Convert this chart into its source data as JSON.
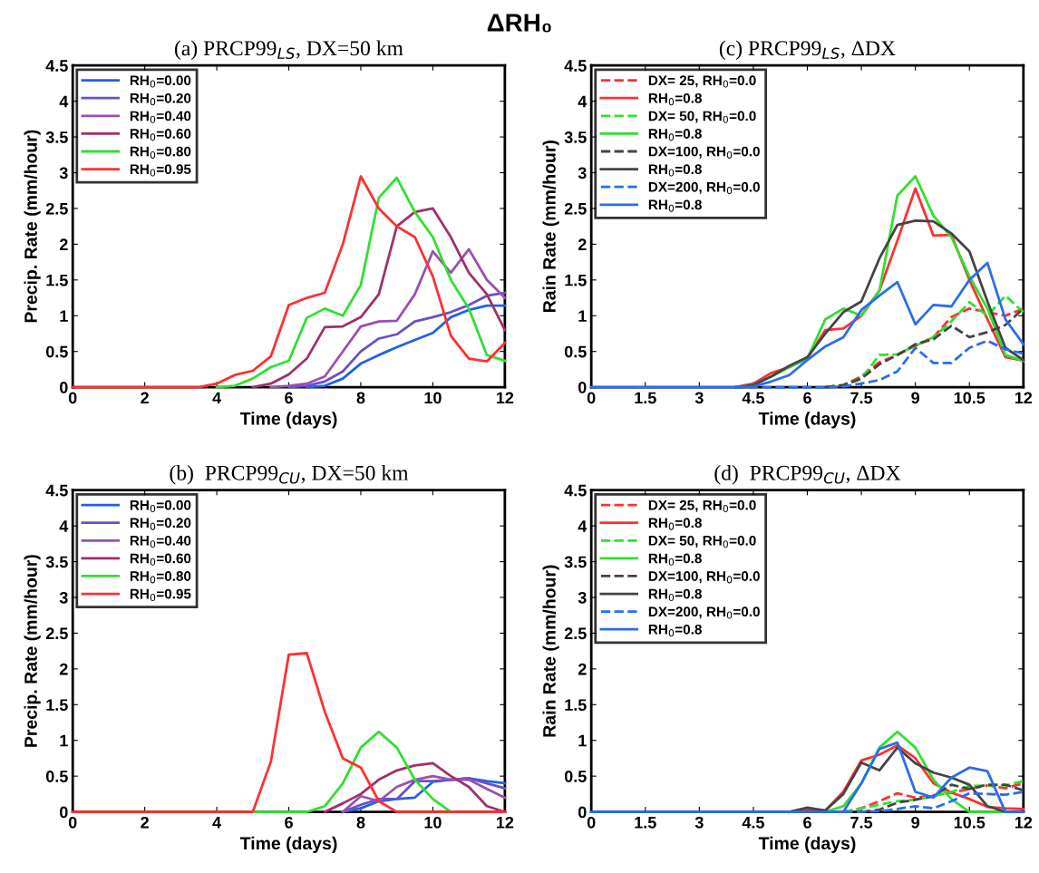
{
  "chart_data": [
    {
      "type": "line",
      "title": "(a) PRCP99$_{LS}$, DX=50 km",
      "xlabel": "Time (days)",
      "ylabel": "Precip. Rate (mm/hour)",
      "annotations": [
        "ΔRH₀"
      ],
      "legend": "top left",
      "grid": false,
      "xlim": [
        0,
        12
      ],
      "xticks": [
        0,
        2,
        4,
        6,
        8,
        10,
        12
      ],
      "ylim": [
        0,
        4.5
      ],
      "yticks": [
        0,
        0.5,
        1,
        1.5,
        2,
        2.5,
        3,
        3.5,
        4,
        4.5
      ],
      "x": [
        0,
        0.5,
        1,
        1.5,
        2,
        2.5,
        3,
        3.5,
        4,
        4.5,
        5,
        5.5,
        6,
        6.5,
        7,
        7.5,
        8,
        8.5,
        9,
        9.5,
        10,
        10.5,
        11,
        11.5,
        12
      ],
      "series": [
        {
          "name": "RH$_{0}$=0.00",
          "color": "#2060e8",
          "line_style": "solid",
          "values": [
            null,
            null,
            null,
            null,
            null,
            null,
            null,
            null,
            null,
            null,
            null,
            null,
            null,
            0,
            0.02,
            0.12,
            0.33,
            0.45,
            0.56,
            0.66,
            0.76,
            0.98,
            1.08,
            1.14,
            1.14
          ]
        },
        {
          "name": "RH$_{0}$=0.20",
          "color": "#6a50c8",
          "line_style": "solid",
          "values": [
            null,
            null,
            null,
            null,
            null,
            null,
            null,
            null,
            null,
            null,
            null,
            null,
            0,
            0.02,
            0.08,
            0.22,
            0.5,
            0.68,
            0.74,
            0.92,
            0.98,
            1.05,
            1.15,
            1.28,
            1.32
          ]
        },
        {
          "name": "RH$_{0}$=0.40",
          "color": "#9a50b0",
          "line_style": "solid",
          "values": [
            null,
            null,
            null,
            null,
            null,
            null,
            null,
            null,
            null,
            null,
            null,
            0,
            0.02,
            0.05,
            0.15,
            0.5,
            0.85,
            0.92,
            0.93,
            1.3,
            1.9,
            1.6,
            1.93,
            1.5,
            1.25
          ]
        },
        {
          "name": "RH$_{0}$=0.60",
          "color": "#a0306a",
          "line_style": "solid",
          "values": [
            null,
            null,
            null,
            null,
            null,
            null,
            null,
            null,
            null,
            null,
            0,
            0.05,
            0.18,
            0.4,
            0.84,
            0.85,
            0.98,
            1.3,
            2.25,
            2.45,
            2.5,
            2.1,
            1.6,
            1.3,
            0.8
          ]
        },
        {
          "name": "RH$_{0}$=0.80",
          "color": "#30e030",
          "line_style": "solid",
          "values": [
            null,
            null,
            null,
            null,
            null,
            null,
            null,
            null,
            0,
            0.02,
            0.12,
            0.28,
            0.37,
            0.97,
            1.1,
            1.0,
            1.43,
            2.65,
            2.93,
            2.45,
            2.1,
            1.5,
            1.1,
            0.45,
            0.37
          ]
        },
        {
          "name": "RH$_{0}$=0.95",
          "color": "#ff3030",
          "line_style": "solid",
          "values": [
            0,
            0,
            0,
            0,
            0,
            0,
            0,
            0,
            0.05,
            0.17,
            0.23,
            0.43,
            1.15,
            1.25,
            1.32,
            2.0,
            2.95,
            2.5,
            2.25,
            2.1,
            1.55,
            0.72,
            0.4,
            0.36,
            0.62
          ]
        }
      ]
    },
    {
      "type": "line",
      "title": "(c) PRCP99$_{LS}$, ΔDX",
      "xlabel": "Time (days)",
      "ylabel": "Rain Rate (mm/hour)",
      "legend": "top left",
      "grid": false,
      "xlim": [
        0,
        12
      ],
      "xticks": [
        0,
        1.5,
        3,
        4.5,
        6,
        7.5,
        9,
        10.5,
        12
      ],
      "ylim": [
        0,
        4.5
      ],
      "yticks": [
        0,
        0.5,
        1,
        1.5,
        2,
        2.5,
        3,
        3.5,
        4,
        4.5
      ],
      "x": [
        0,
        0.5,
        1,
        1.5,
        2,
        2.5,
        3,
        3.5,
        4,
        4.5,
        5,
        5.5,
        6,
        6.5,
        7,
        7.5,
        8,
        8.5,
        9,
        9.5,
        10,
        10.5,
        11,
        11.5,
        12
      ],
      "series": [
        {
          "name": "DX= 25, RH$_{0}$=0.0",
          "color": "#ff3030",
          "line_style": "dashed",
          "values": [
            null,
            null,
            null,
            null,
            null,
            null,
            null,
            null,
            null,
            null,
            null,
            null,
            null,
            0,
            0.03,
            0.15,
            0.35,
            0.45,
            0.58,
            0.7,
            0.98,
            1.1,
            1.05,
            1.0,
            1.1
          ]
        },
        {
          "name": "RH$_{0}$=0.8",
          "color": "#ff3030",
          "line_style": "solid",
          "values": [
            null,
            null,
            null,
            null,
            null,
            null,
            null,
            null,
            0,
            0.05,
            0.2,
            0.28,
            0.4,
            0.8,
            0.82,
            1.0,
            1.35,
            2.05,
            2.78,
            2.12,
            2.13,
            1.5,
            0.95,
            0.42,
            0.37
          ]
        },
        {
          "name": "DX= 50, RH$_{0}$=0.0",
          "color": "#30e030",
          "line_style": "dashed",
          "values": [
            null,
            null,
            null,
            null,
            null,
            null,
            null,
            null,
            null,
            null,
            null,
            null,
            null,
            0,
            0.03,
            0.12,
            0.45,
            0.46,
            0.58,
            0.7,
            0.92,
            1.19,
            1.0,
            1.28,
            1.05
          ]
        },
        {
          "name": "RH$_{0}$=0.8",
          "color": "#30e030",
          "line_style": "solid",
          "values": [
            null,
            null,
            null,
            null,
            null,
            null,
            null,
            null,
            0,
            0.03,
            0.15,
            0.28,
            0.4,
            0.95,
            1.1,
            1.0,
            1.35,
            2.68,
            2.95,
            2.4,
            2.1,
            1.55,
            1.1,
            0.45,
            0.37
          ]
        },
        {
          "name": "DX=100, RH$_{0}$=0.0",
          "color": "#444444",
          "line_style": "dashed",
          "values": [
            null,
            null,
            null,
            null,
            null,
            null,
            null,
            null,
            null,
            null,
            null,
            null,
            null,
            0,
            0.03,
            0.12,
            0.32,
            0.45,
            0.6,
            0.67,
            0.86,
            0.7,
            0.77,
            0.87,
            1.1
          ]
        },
        {
          "name": "RH$_{0}$=0.8",
          "color": "#444444",
          "line_style": "solid",
          "values": [
            null,
            null,
            null,
            null,
            null,
            null,
            null,
            null,
            0,
            0.03,
            0.15,
            0.3,
            0.42,
            0.75,
            1.05,
            1.2,
            1.8,
            2.27,
            2.33,
            2.32,
            2.15,
            1.9,
            1.2,
            0.55,
            0.38
          ]
        },
        {
          "name": "DX=200, RH$_{0}$=0.0",
          "color": "#2a6cf0",
          "line_style": "dashed",
          "values": [
            null,
            null,
            null,
            null,
            null,
            null,
            null,
            null,
            0,
            0,
            0,
            0,
            0,
            0,
            0.01,
            0.05,
            0.1,
            0.22,
            0.55,
            0.34,
            0.34,
            0.55,
            0.65,
            0.53,
            0.47
          ]
        },
        {
          "name": "RH$_{0}$=0.8",
          "color": "#2a6cf0",
          "line_style": "solid",
          "values": [
            0,
            0,
            0,
            0,
            0,
            0,
            0,
            0,
            0,
            0.01,
            0.08,
            0.17,
            0.38,
            0.57,
            0.7,
            1.08,
            1.28,
            1.47,
            0.88,
            1.15,
            1.13,
            1.5,
            1.74,
            0.95,
            0.6
          ]
        }
      ]
    },
    {
      "type": "line",
      "title": "(b)  PRCP99$_{CU}$, DX=50 km",
      "xlabel": "Time (days)",
      "ylabel": "Precip. Rate (mm/hour)",
      "legend": "top left",
      "grid": false,
      "xlim": [
        0,
        12
      ],
      "xticks": [
        0,
        2,
        4,
        6,
        8,
        10,
        12
      ],
      "ylim": [
        0,
        4.5
      ],
      "yticks": [
        0,
        0.5,
        1,
        1.5,
        2,
        2.5,
        3,
        3.5,
        4,
        4.5
      ],
      "x": [
        0,
        0.5,
        1,
        1.5,
        2,
        2.5,
        3,
        3.5,
        4,
        4.5,
        5,
        5.5,
        6,
        6.5,
        7,
        7.5,
        8,
        8.5,
        9,
        9.5,
        10,
        10.5,
        11,
        11.5,
        12
      ],
      "series": [
        {
          "name": "RH$_{0}$=0.00",
          "color": "#2060e8",
          "line_style": "solid",
          "values": [
            null,
            null,
            null,
            null,
            null,
            null,
            null,
            null,
            null,
            null,
            null,
            null,
            null,
            null,
            null,
            0,
            0.05,
            0.15,
            0.18,
            0.2,
            0.42,
            0.45,
            0.47,
            0.43,
            0.4
          ]
        },
        {
          "name": "RH$_{0}$=0.20",
          "color": "#6a50c8",
          "line_style": "solid",
          "values": [
            null,
            null,
            null,
            null,
            null,
            null,
            null,
            null,
            null,
            null,
            null,
            null,
            null,
            null,
            null,
            0,
            0.1,
            0.18,
            0.18,
            0.43,
            0.43,
            0.45,
            0.47,
            0.4,
            0.33
          ]
        },
        {
          "name": "RH$_{0}$=0.40",
          "color": "#9a50b0",
          "line_style": "solid",
          "values": [
            null,
            null,
            null,
            null,
            null,
            null,
            null,
            null,
            null,
            null,
            null,
            null,
            null,
            null,
            null,
            0,
            0.22,
            0.15,
            0.35,
            0.45,
            0.5,
            0.45,
            0.45,
            0.32,
            0.2
          ]
        },
        {
          "name": "RH$_{0}$=0.60",
          "color": "#a0306a",
          "line_style": "solid",
          "values": [
            null,
            null,
            null,
            null,
            null,
            null,
            null,
            null,
            null,
            null,
            null,
            null,
            null,
            null,
            0,
            0.12,
            0.25,
            0.45,
            0.58,
            0.65,
            0.68,
            0.5,
            0.35,
            0.08,
            0
          ]
        },
        {
          "name": "RH$_{0}$=0.80",
          "color": "#30e030",
          "line_style": "solid",
          "values": [
            null,
            null,
            null,
            null,
            null,
            null,
            null,
            null,
            null,
            null,
            0,
            0,
            0,
            0,
            0.08,
            0.4,
            0.9,
            1.12,
            0.9,
            0.45,
            0.18,
            0,
            null,
            null,
            null
          ]
        },
        {
          "name": "RH$_{0}$=0.95",
          "color": "#ff3030",
          "line_style": "solid",
          "values": [
            0,
            0,
            0,
            0,
            0,
            0,
            0,
            0,
            0,
            0,
            0,
            0.7,
            2.2,
            2.22,
            1.4,
            0.75,
            0.62,
            0.15,
            0,
            0,
            0,
            0,
            0,
            0,
            0
          ]
        }
      ]
    },
    {
      "type": "line",
      "title": "(d)  PRCP99$_{CU}$, ΔDX",
      "xlabel": "Time (days)",
      "ylabel": "Rain Rate (mm/hour)",
      "legend": "top left",
      "grid": false,
      "xlim": [
        0,
        12
      ],
      "xticks": [
        0,
        1.5,
        3,
        4.5,
        6,
        7.5,
        9,
        10.5,
        12
      ],
      "ylim": [
        0,
        4.5
      ],
      "yticks": [
        0,
        0.5,
        1,
        1.5,
        2,
        2.5,
        3,
        3.5,
        4,
        4.5
      ],
      "x": [
        0,
        0.5,
        1,
        1.5,
        2,
        2.5,
        3,
        3.5,
        4,
        4.5,
        5,
        5.5,
        6,
        6.5,
        7,
        7.5,
        8,
        8.5,
        9,
        9.5,
        10,
        10.5,
        11,
        11.5,
        12
      ],
      "series": [
        {
          "name": "DX= 25, RH$_{0}$=0.0",
          "color": "#ff3030",
          "line_style": "dashed",
          "values": [
            null,
            null,
            null,
            null,
            null,
            null,
            null,
            null,
            null,
            null,
            null,
            null,
            null,
            null,
            0,
            0.05,
            0.15,
            0.26,
            0.2,
            0.23,
            0.27,
            0.32,
            0.37,
            0.33,
            0.4
          ]
        },
        {
          "name": "RH$_{0}$=0.8",
          "color": "#ff3030",
          "line_style": "solid",
          "values": [
            null,
            null,
            null,
            null,
            null,
            null,
            null,
            null,
            null,
            null,
            null,
            0,
            0.04,
            0.02,
            0.28,
            0.72,
            0.8,
            0.93,
            0.75,
            0.4,
            0.27,
            0.18,
            0.07,
            0.05,
            0.04
          ]
        },
        {
          "name": "DX= 50, RH$_{0}$=0.0",
          "color": "#30e030",
          "line_style": "dashed",
          "values": [
            null,
            null,
            null,
            null,
            null,
            null,
            null,
            null,
            null,
            null,
            null,
            null,
            null,
            null,
            0,
            0.05,
            0.1,
            0.15,
            0.17,
            0.22,
            0.28,
            0.36,
            0.37,
            0.37,
            0.43
          ]
        },
        {
          "name": "RH$_{0}$=0.8",
          "color": "#30e030",
          "line_style": "solid",
          "values": [
            null,
            null,
            null,
            null,
            null,
            null,
            null,
            null,
            null,
            null,
            null,
            null,
            null,
            0,
            0.08,
            0.4,
            0.9,
            1.12,
            0.9,
            0.45,
            0.18,
            0,
            0,
            0,
            null
          ]
        },
        {
          "name": "DX=100, RH$_{0}$=0.0",
          "color": "#444444",
          "line_style": "dashed",
          "values": [
            null,
            null,
            null,
            null,
            null,
            null,
            null,
            null,
            null,
            null,
            null,
            null,
            null,
            null,
            null,
            0,
            0.03,
            0.13,
            0.17,
            0.22,
            0.38,
            0.32,
            0.38,
            0.38,
            0.3
          ]
        },
        {
          "name": "RH$_{0}$=0.8",
          "color": "#444444",
          "line_style": "solid",
          "values": [
            null,
            null,
            null,
            null,
            null,
            null,
            null,
            null,
            null,
            null,
            null,
            0,
            0.06,
            0.02,
            0.25,
            0.69,
            0.58,
            0.9,
            0.68,
            0.55,
            0.48,
            0.38,
            0.08,
            0,
            null
          ]
        },
        {
          "name": "DX=200, RH$_{0}$=0.0",
          "color": "#2a6cf0",
          "line_style": "dashed",
          "values": [
            null,
            null,
            null,
            null,
            null,
            null,
            null,
            null,
            null,
            null,
            null,
            null,
            null,
            null,
            0,
            0,
            0.01,
            0.04,
            0.08,
            0.05,
            0.15,
            0.26,
            0.25,
            0.24,
            0.28
          ]
        },
        {
          "name": "RH$_{0}$=0.8",
          "color": "#2a6cf0",
          "line_style": "solid",
          "values": [
            0,
            0,
            0,
            0,
            0,
            0,
            0,
            0,
            0,
            0,
            0,
            0,
            0,
            0,
            0,
            0.4,
            0.88,
            0.97,
            0.28,
            0.2,
            0.48,
            0.62,
            0.57,
            0,
            0
          ]
        }
      ]
    }
  ]
}
